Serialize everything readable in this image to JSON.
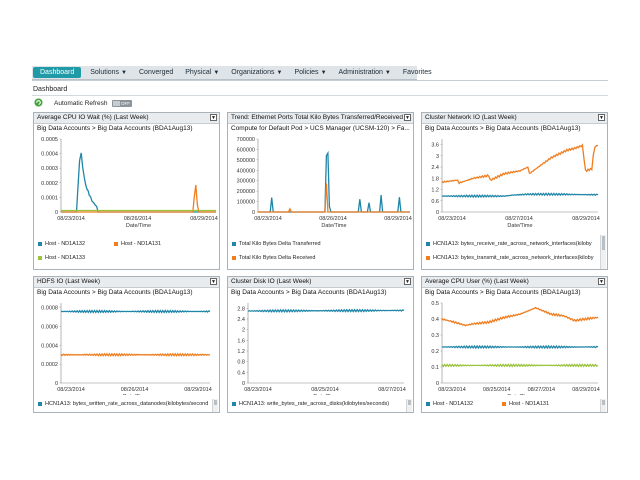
{
  "nav": {
    "items": [
      {
        "label": "Dashboard",
        "active": true,
        "caret": false
      },
      {
        "label": "Solutions",
        "active": false,
        "caret": true
      },
      {
        "label": "Converged",
        "active": false,
        "caret": false
      },
      {
        "label": "Physical",
        "active": false,
        "caret": true
      },
      {
        "label": "Organizations",
        "active": false,
        "caret": true
      },
      {
        "label": "Policies",
        "active": false,
        "caret": true
      },
      {
        "label": "Administration",
        "active": false,
        "caret": true
      },
      {
        "label": "Favorites",
        "active": false,
        "caret": false
      }
    ],
    "caret_glyph": "▼"
  },
  "page": {
    "title": "Dashboard",
    "auto_refresh_label": "Automatic Refresh",
    "toggle_state": "OFF"
  },
  "colors": {
    "blue": "#1f86a8",
    "orange": "#f07d1f",
    "green": "#9ac43d",
    "accent": "#1f9aa6"
  },
  "panels": [
    {
      "title": "Average CPU IO Wait (%) (Last Week)",
      "subtitle": "Big Data Accounts > Big Data Accounts (BDA1Aug13)",
      "xlabel": "Date/Time",
      "yticks": [
        "0.0005",
        "0.0004",
        "0.0003",
        "0.0002",
        "0.0001",
        "0"
      ],
      "xticks": [
        "08/23/2014",
        "08/26/2014",
        "08/29/2014"
      ],
      "legend": [
        {
          "label": "Host - ND1A132",
          "color": "blue"
        },
        {
          "label": "Host - ND1A131",
          "color": "orange"
        },
        {
          "label": "Host - ND1A133",
          "color": "green"
        }
      ],
      "chart_data": {
        "type": "line",
        "ylim": [
          0,
          0.0005
        ],
        "xlim": [
          0,
          100
        ],
        "series": [
          {
            "name": "Host - ND1A132",
            "color": "blue",
            "points": [
              [
                0,
                0
              ],
              [
                10,
                0
              ],
              [
                12,
                0.00035
              ],
              [
                13,
                0.00041
              ],
              [
                14,
                0.0003
              ],
              [
                16,
                0.00018
              ],
              [
                19,
                0.0001
              ],
              [
                21,
                6e-05
              ],
              [
                23,
                4e-05
              ],
              [
                24,
                0
              ],
              [
                100,
                0
              ]
            ]
          },
          {
            "name": "Host - ND1A131",
            "color": "orange",
            "points": [
              [
                0,
                0
              ],
              [
                85,
                0
              ],
              [
                86,
                0.00011
              ],
              [
                87,
                0.00018
              ],
              [
                88,
                5e-05
              ],
              [
                89,
                0
              ],
              [
                100,
                0
              ]
            ]
          },
          {
            "name": "Host - ND1A133",
            "color": "green",
            "points": [
              [
                0,
                1e-05
              ],
              [
                100,
                1e-05
              ]
            ]
          }
        ]
      }
    },
    {
      "title": "Trend: Ethernet Ports Total Kilo Bytes Transferred/Received",
      "subtitle": "Compute for Default Pod > UCS Manager (UCSM-120) > Fa...",
      "xlabel": "Date/Time",
      "yticks": [
        "700000",
        "600000",
        "500000",
        "400000",
        "300000",
        "200000",
        "100000",
        "0"
      ],
      "xticks": [
        "08/23/2014",
        "08/26/2014",
        "08/29/2014"
      ],
      "legend": [
        {
          "label": "Total Kilo Bytes Delta Transferred",
          "color": "blue"
        },
        {
          "label": "Total Kilo Bytes Delta Received",
          "color": "orange"
        }
      ],
      "chart_data": {
        "type": "line",
        "ylim": [
          0,
          700000
        ],
        "xlim": [
          0,
          100
        ],
        "series": [
          {
            "name": "Total Kilo Bytes Delta Transferred",
            "color": "blue",
            "points": [
              [
                0,
                0
              ],
              [
                8,
                0
              ],
              [
                9,
                130000
              ],
              [
                10,
                0
              ],
              [
                44,
                0
              ],
              [
                45,
                540000
              ],
              [
                46,
                560000
              ],
              [
                47,
                60000
              ],
              [
                48,
                0
              ],
              [
                66,
                0
              ],
              [
                67,
                120000
              ],
              [
                68,
                0
              ],
              [
                72,
                0
              ],
              [
                73,
                90000
              ],
              [
                74,
                0
              ],
              [
                80,
                0
              ],
              [
                81,
                170000
              ],
              [
                82,
                0
              ],
              [
                92,
                0
              ],
              [
                93,
                150000
              ],
              [
                94,
                0
              ],
              [
                100,
                0
              ]
            ]
          },
          {
            "name": "Total Kilo Bytes Delta Received",
            "color": "orange",
            "points": [
              [
                0,
                0
              ],
              [
                20,
                0
              ],
              [
                21,
                30000
              ],
              [
                22,
                0
              ],
              [
                44,
                0
              ],
              [
                45,
                280000
              ],
              [
                46,
                0
              ],
              [
                100,
                0
              ]
            ]
          }
        ]
      }
    },
    {
      "title": "Cluster Network IO (Last Week)",
      "subtitle": "Big Data Accounts > Big Data Accounts (BDA1Aug13)",
      "xlabel": "Date/Time",
      "yticks": [
        "3.6",
        "3",
        "2.4",
        "1.8",
        "1.2",
        "0.6",
        "0"
      ],
      "xticks": [
        "08/23/2014",
        "08/27/2014",
        "08/29/2014"
      ],
      "legend": [
        {
          "label": "HCN1A13: bytes_receive_rate_across_network_interfaces(kiloby",
          "color": "blue"
        },
        {
          "label": "HCN1A13: bytes_transmit_rate_across_network_interfaces(kiloby",
          "color": "orange"
        }
      ],
      "chart_data": {
        "type": "line",
        "ylim": [
          0,
          3.9
        ],
        "xlim": [
          0,
          100
        ],
        "series": [
          {
            "name": "HCN1A13: bytes_receive_rate_across_network_interfaces(kiloby",
            "color": "blue",
            "points": [
              [
                0,
                0.85
              ],
              [
                40,
                0.85
              ],
              [
                45,
                0.9
              ],
              [
                55,
                0.95
              ],
              [
                70,
                0.95
              ],
              [
                100,
                0.92
              ]
            ]
          },
          {
            "name": "HCN1A13: bytes_transmit_rate_across_network_interfaces(kiloby",
            "color": "orange",
            "points": [
              [
                0,
                1.6
              ],
              [
                10,
                1.7
              ],
              [
                11,
                1.55
              ],
              [
                20,
                1.8
              ],
              [
                30,
                1.95
              ],
              [
                31,
                1.7
              ],
              [
                40,
                2.05
              ],
              [
                50,
                2.2
              ],
              [
                55,
                2.4
              ],
              [
                56,
                2.05
              ],
              [
                65,
                2.6
              ],
              [
                70,
                2.9
              ],
              [
                75,
                3.1
              ],
              [
                80,
                3.3
              ],
              [
                85,
                3.4
              ],
              [
                90,
                3.55
              ],
              [
                92,
                2.2
              ],
              [
                96,
                2.3
              ],
              [
                97,
                3.0
              ],
              [
                98,
                3.5
              ],
              [
                100,
                3.55
              ]
            ]
          }
        ]
      }
    },
    {
      "title": "HDFS IO (Last Week)",
      "subtitle": "Big Data Accounts > Big Data Accounts (BDA1Aug13)",
      "xlabel": "Date/Time",
      "yticks": [
        "0.0008",
        "0.0006",
        "0.0004",
        "0.0002",
        "0"
      ],
      "xticks": [
        "08/23/2014",
        "08/26/2014",
        "08/29/2014"
      ],
      "legend": [
        {
          "label": "HCN1A13: bytes_written_rate_across_datanodes(kilobytes/second",
          "color": "blue"
        }
      ],
      "chart_data": {
        "type": "line",
        "ylim": [
          0,
          0.00085
        ],
        "xlim": [
          0,
          100
        ],
        "series": [
          {
            "name": "HCN1A13: bytes_written_rate_across_datanodes(kilobytes/second",
            "color": "blue",
            "points": [
              [
                0,
                0.00076
              ],
              [
                100,
                0.00076
              ]
            ]
          },
          {
            "name": "",
            "color": "orange",
            "points": [
              [
                0,
                0.0003
              ],
              [
                100,
                0.0003
              ]
            ]
          }
        ]
      }
    },
    {
      "title": "Cluster Disk IO (Last Week)",
      "subtitle": "Big Data Accounts > Big Data Accounts (BDA1Aug13)",
      "xlabel": "Date/Time",
      "yticks": [
        "2.8",
        "2.4",
        "2",
        "1.6",
        "1.2",
        "0.8",
        "0.4",
        "0"
      ],
      "xticks": [
        "08/23/2014",
        "08/25/2014",
        "08/27/2014"
      ],
      "legend": [
        {
          "label": "HCN1A13: write_bytes_rate_across_disks(kilobytes/seconds)",
          "color": "blue"
        }
      ],
      "chart_data": {
        "type": "line",
        "ylim": [
          0,
          3.0
        ],
        "xlim": [
          0,
          100
        ],
        "series": [
          {
            "name": "HCN1A13: write_bytes_rate_across_disks(kilobytes/seconds)",
            "color": "blue",
            "points": [
              [
                0,
                2.7
              ],
              [
                100,
                2.72
              ]
            ]
          }
        ]
      }
    },
    {
      "title": "Average CPU User (%) (Last Week)",
      "subtitle": "Big Data Accounts > Big Data Accounts (BDA1Aug13)",
      "xlabel": "Date/Time",
      "yticks": [
        "0.5",
        "0.4",
        "0.3",
        "0.2",
        "0.1",
        "0"
      ],
      "xticks": [
        "08/23/2014",
        "08/25/2014",
        "08/27/2014",
        "08/29/2014"
      ],
      "legend": [
        {
          "label": "Host - ND1A132",
          "color": "blue"
        },
        {
          "label": "Host - ND1A131",
          "color": "orange"
        }
      ],
      "chart_data": {
        "type": "line",
        "ylim": [
          0,
          0.5
        ],
        "xlim": [
          0,
          100
        ],
        "series": [
          {
            "name": "Host - ND1A132",
            "color": "blue",
            "points": [
              [
                0,
                0.225
              ],
              [
                100,
                0.225
              ]
            ]
          },
          {
            "name": "Host - ND1A131",
            "color": "orange",
            "points": [
              [
                0,
                0.4
              ],
              [
                8,
                0.38
              ],
              [
                15,
                0.36
              ],
              [
                20,
                0.37
              ],
              [
                30,
                0.38
              ],
              [
                40,
                0.41
              ],
              [
                50,
                0.43
              ],
              [
                55,
                0.45
              ],
              [
                60,
                0.47
              ],
              [
                65,
                0.45
              ],
              [
                70,
                0.43
              ],
              [
                78,
                0.42
              ],
              [
                85,
                0.39
              ],
              [
                92,
                0.4
              ],
              [
                100,
                0.41
              ]
            ]
          },
          {
            "name": "",
            "color": "green",
            "points": [
              [
                0,
                0.11
              ],
              [
                100,
                0.11
              ]
            ]
          }
        ]
      }
    }
  ]
}
